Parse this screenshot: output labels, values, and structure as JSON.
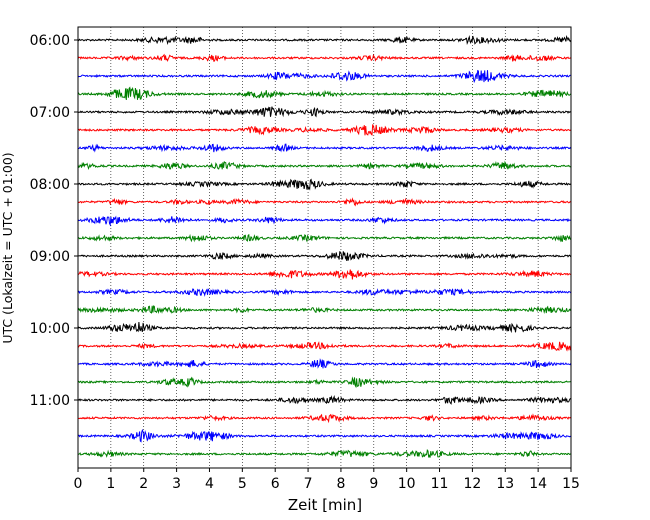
{
  "chart_data": {
    "type": "line",
    "title": "",
    "xlabel": "Zeit  [min]",
    "ylabel": "UTC (Lokalzeit = UTC + 01:00)",
    "xlim": [
      0,
      15
    ],
    "x_ticks": [
      "0",
      "1",
      "2",
      "3",
      "4",
      "5",
      "6",
      "7",
      "8",
      "9",
      "10",
      "11",
      "12",
      "13",
      "14",
      "15"
    ],
    "y_ticks": [
      "06:00",
      "07:00",
      "08:00",
      "09:00",
      "10:00",
      "11:00"
    ],
    "grid": "vertical dotted",
    "trace_interval_min": 15,
    "trace_start": "06:00",
    "trace_count": 24,
    "trace_colors": [
      "#000000",
      "#ff0000",
      "#0000ff",
      "#008000"
    ],
    "trace_description": "continuous seismogram traces; each row spans 15 minutes of ground motion with low-amplitude noise"
  }
}
